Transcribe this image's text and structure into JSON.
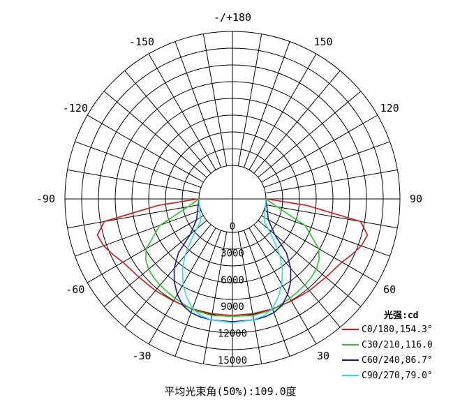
{
  "chart_data": {
    "type": "polar-line",
    "title": "",
    "footer": "平均光束角(50%):109.0度",
    "radial_max": 15000,
    "radial_ticks": [
      0,
      3000,
      6000,
      9000,
      12000,
      15000
    ],
    "radial_tick_labels": [
      "0",
      "3000",
      "6000",
      "9000",
      "12000",
      "15000"
    ],
    "angle_labels": [
      {
        "text": "-/+180",
        "angle": 180
      },
      {
        "text": "150",
        "angle": 150
      },
      {
        "text": "120",
        "angle": 120
      },
      {
        "text": "90",
        "angle": 90
      },
      {
        "text": "60",
        "angle": 60
      },
      {
        "text": "30",
        "angle": 30
      },
      {
        "text": "-30",
        "angle": -30
      },
      {
        "text": "-60",
        "angle": -60
      },
      {
        "text": "-90",
        "angle": -90
      },
      {
        "text": "-120",
        "angle": -120
      },
      {
        "text": "-150",
        "angle": -150
      }
    ],
    "legend_title": "光强:cd",
    "legend_position": "bottom-right",
    "series": [
      {
        "name": "C0/180,154.3°",
        "color": "#e01010",
        "points": [
          [
            -90,
            60
          ],
          [
            -85,
            4600
          ],
          [
            -80,
            10800
          ],
          [
            -75,
            11900
          ],
          [
            -70,
            11600
          ],
          [
            -65,
            11000
          ],
          [
            -60,
            10400
          ],
          [
            -50,
            9900
          ],
          [
            -40,
            9650
          ],
          [
            -30,
            9450
          ],
          [
            -20,
            9350
          ],
          [
            -10,
            9300
          ],
          [
            0,
            9300
          ],
          [
            10,
            9300
          ],
          [
            20,
            9350
          ],
          [
            30,
            9450
          ],
          [
            40,
            9650
          ],
          [
            50,
            9900
          ],
          [
            60,
            10400
          ],
          [
            65,
            11000
          ],
          [
            70,
            11600
          ],
          [
            75,
            11900
          ],
          [
            80,
            10800
          ],
          [
            85,
            4600
          ],
          [
            90,
            60
          ]
        ]
      },
      {
        "name": "C30/210,116.0",
        "color": "#22cc22",
        "points": [
          [
            -90,
            0
          ],
          [
            -80,
            1300
          ],
          [
            -70,
            4900
          ],
          [
            -60,
            7400
          ],
          [
            -55,
            8100
          ],
          [
            -50,
            8500
          ],
          [
            -45,
            8700
          ],
          [
            -40,
            8850
          ],
          [
            -35,
            8950
          ],
          [
            -30,
            9100
          ],
          [
            -20,
            9450
          ],
          [
            -10,
            9500
          ],
          [
            0,
            9400
          ],
          [
            10,
            9500
          ],
          [
            20,
            9450
          ],
          [
            30,
            9100
          ],
          [
            35,
            8950
          ],
          [
            40,
            8850
          ],
          [
            45,
            8700
          ],
          [
            50,
            8500
          ],
          [
            55,
            8100
          ],
          [
            60,
            7400
          ],
          [
            70,
            4900
          ],
          [
            80,
            1300
          ],
          [
            90,
            0
          ]
        ]
      },
      {
        "name": "C60/240,86.7°",
        "color": "#1010bb",
        "points": [
          [
            -90,
            0
          ],
          [
            -60,
            900
          ],
          [
            -50,
            2400
          ],
          [
            -45,
            4800
          ],
          [
            -40,
            6400
          ],
          [
            -35,
            7600
          ],
          [
            -30,
            8600
          ],
          [
            -25,
            9400
          ],
          [
            -20,
            9800
          ],
          [
            -15,
            9950
          ],
          [
            -10,
            10000
          ],
          [
            0,
            10000
          ],
          [
            10,
            10000
          ],
          [
            15,
            9950
          ],
          [
            20,
            9800
          ],
          [
            25,
            9400
          ],
          [
            30,
            8600
          ],
          [
            35,
            7600
          ],
          [
            40,
            6400
          ],
          [
            45,
            4800
          ],
          [
            50,
            2400
          ],
          [
            60,
            900
          ],
          [
            90,
            0
          ]
        ]
      },
      {
        "name": "C90/270,79.0°",
        "color": "#22e0e0",
        "points": [
          [
            -90,
            0
          ],
          [
            -55,
            600
          ],
          [
            -45,
            2800
          ],
          [
            -40,
            4500
          ],
          [
            -35,
            6000
          ],
          [
            -30,
            7300
          ],
          [
            -25,
            8400
          ],
          [
            -20,
            9300
          ],
          [
            -15,
            9800
          ],
          [
            -10,
            10000
          ],
          [
            0,
            10100
          ],
          [
            10,
            10000
          ],
          [
            15,
            9800
          ],
          [
            20,
            9300
          ],
          [
            25,
            8400
          ],
          [
            30,
            7300
          ],
          [
            35,
            6000
          ],
          [
            40,
            4500
          ],
          [
            45,
            2800
          ],
          [
            55,
            600
          ],
          [
            90,
            0
          ]
        ]
      }
    ]
  }
}
